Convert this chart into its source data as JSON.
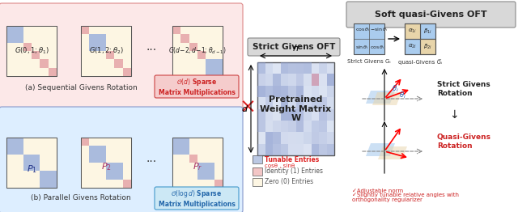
{
  "bg_color": "#ffffff",
  "left_panel_bg_pink": "#fce8e8",
  "left_panel_bg_blue": "#ddeeff",
  "matrix_bg": "#fdf6e3",
  "blue_cell": "#aabbdd",
  "light_blue_cell": "#c8d8ee",
  "pink_cell": "#f0b8b8",
  "red_cross_color": "#dd2222",
  "title_seq": "(a) Sequential Givens Rotation",
  "title_par": "(b) Parallel Givens Rotation",
  "label_od": "O(d) Sparse\nMatrix Multiplications",
  "label_ologd": "O(log d) Sparse\nMatrix Multiplications",
  "label_strict": "Strict Givens OFT",
  "label_soft": "Soft quasi-Givens OFT",
  "pretrained_label": "Pretrained\nWeight Matrix\nW",
  "tunable_label": "Tunable Entries",
  "cossin_label": "cosθ , sinθ",
  "identity_label": "Identity (1) Entries",
  "zero_label": "Zero (0) Entries",
  "strict_givens_label": "Strict Givens Gᵢ",
  "quasi_givens_label": "quasi-Givens G̅ᵢ",
  "strict_rotation_label": "Strict Givens\nRotation",
  "quasi_rotation_label": "Quasi-Givens\nRotation",
  "adjustable_label": "✓Adjustable norm",
  "tunable_angles_label": "✓Slightly tunable relative angles with\northogonality regularizer",
  "n_label": "n",
  "d_label": "d"
}
